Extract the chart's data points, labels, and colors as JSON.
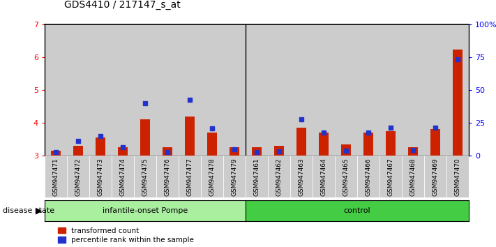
{
  "title": "GDS4410 / 217147_s_at",
  "samples": [
    "GSM947471",
    "GSM947472",
    "GSM947473",
    "GSM947474",
    "GSM947475",
    "GSM947476",
    "GSM947477",
    "GSM947478",
    "GSM947479",
    "GSM947461",
    "GSM947462",
    "GSM947463",
    "GSM947464",
    "GSM947465",
    "GSM947466",
    "GSM947467",
    "GSM947468",
    "GSM947469",
    "GSM947470"
  ],
  "red_values": [
    3.15,
    3.3,
    3.55,
    3.25,
    4.1,
    3.25,
    4.2,
    3.7,
    3.25,
    3.25,
    3.3,
    3.85,
    3.7,
    3.35,
    3.7,
    3.75,
    3.25,
    3.8,
    6.25
  ],
  "blue_values": [
    3.1,
    3.45,
    3.6,
    3.25,
    4.6,
    3.1,
    4.7,
    3.83,
    3.2,
    3.1,
    3.12,
    4.1,
    3.7,
    3.15,
    3.7,
    3.85,
    3.18,
    3.85,
    5.95
  ],
  "group1_label": "infantile-onset Pompe",
  "group2_label": "control",
  "group1_count": 9,
  "group2_count": 10,
  "disease_state_label": "disease state",
  "ymin": 3,
  "ymax": 7,
  "yticks": [
    3,
    4,
    5,
    6,
    7
  ],
  "right_yticks": [
    0,
    25,
    50,
    75,
    100
  ],
  "bar_color": "#cc2200",
  "dot_color": "#2233cc",
  "bg_color": "#cccccc",
  "group1_bg": "#aaeea0",
  "group2_bg": "#44cc44",
  "legend_red": "transformed count",
  "legend_blue": "percentile rank within the sample",
  "bar_width": 0.45,
  "dot_size": 22
}
